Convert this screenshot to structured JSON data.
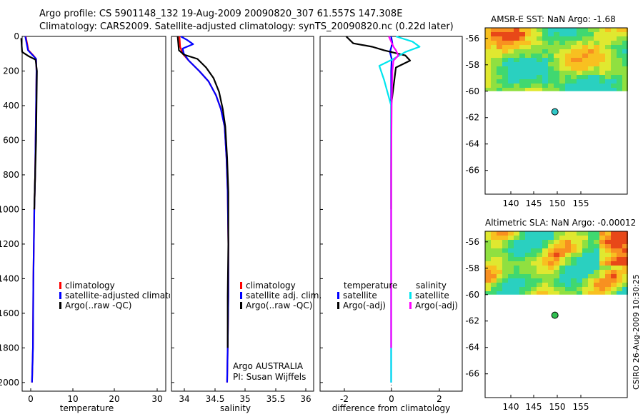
{
  "header": {
    "line1": "Argo profile: CS 5901148_132 19-Aug-2009 20090820_307 61.557S 147.308E",
    "line2": "Climatology: CARS2009. Satellite-adjusted climatology: synTS_20090820.nc (0.22d later)"
  },
  "timestamp": "CSIRO 26-Aug-2009 10:30:25",
  "colors": {
    "climatology": "#ff0000",
    "satellite": "#0000ff",
    "argo": "#000000",
    "sal_satellite": "#00e5ee",
    "sal_argo": "#ff00ff"
  },
  "chart_data": [
    {
      "type": "line",
      "name": "temperature-profile",
      "xlabel": "temperature",
      "ylabel": "",
      "xlim": [
        -1,
        31
      ],
      "ylim": [
        2050,
        0
      ],
      "xticks": [
        "0",
        "10",
        "20",
        "30"
      ],
      "yticks": [
        "0",
        "200",
        "400",
        "600",
        "800",
        "1000",
        "1200",
        "1400",
        "1600",
        "1800",
        "2000"
      ],
      "legend": [
        "climatology",
        "satellite-adjusted climatology",
        "Argo(..raw -QC)"
      ],
      "series": [
        {
          "name": "climatology",
          "x": [
            -0.2,
            0.4,
            1.5,
            2.1,
            2.2,
            2.1,
            2.0,
            1.9,
            1.7,
            1.5,
            1.4,
            1.2
          ],
          "y": [
            0,
            80,
            110,
            130,
            200,
            400,
            600,
            800,
            1000,
            1400,
            1800,
            2000
          ]
        },
        {
          "name": "satellite-adjusted climatology",
          "x": [
            -0.3,
            0.3,
            1.4,
            2.1,
            2.2,
            2.1,
            2.0,
            1.9,
            1.7,
            1.5,
            1.4,
            1.2
          ],
          "y": [
            0,
            80,
            110,
            130,
            200,
            400,
            600,
            800,
            1000,
            1400,
            1800,
            2000
          ]
        },
        {
          "name": "Argo(..raw -QC)",
          "x": [
            -1.2,
            -1.0,
            0.5,
            2.0,
            2.3,
            2.2,
            2.1,
            1.9,
            1.7
          ],
          "y": [
            10,
            90,
            115,
            135,
            200,
            400,
            600,
            800,
            1000
          ]
        }
      ]
    },
    {
      "type": "line",
      "name": "salinity-profile",
      "xlabel": "salinity",
      "ylabel": "",
      "xlim": [
        33.8,
        36.1
      ],
      "ylim": [
        2050,
        0
      ],
      "xticks": [
        "34",
        "34.5",
        "35",
        "35.5",
        "36"
      ],
      "yticks": [],
      "legend": [
        "climatology",
        "satellite adj. clim.",
        "Argo(..raw -QC)"
      ],
      "note": [
        "Argo AUSTRALIA",
        "PI: Susan Wijffels"
      ],
      "series": [
        {
          "name": "climatology",
          "x": [
            33.93,
            33.94,
            33.98,
            34.08,
            34.25,
            34.4,
            34.52,
            34.6,
            34.66,
            34.69,
            34.71,
            34.72,
            34.72,
            34.71,
            34.7
          ],
          "y": [
            0,
            60,
            100,
            140,
            200,
            260,
            340,
            420,
            520,
            700,
            900,
            1200,
            1500,
            1800,
            2000
          ]
        },
        {
          "name": "satellite adj. clim.",
          "x": [
            33.95,
            34.05,
            34.15,
            33.98,
            34.0,
            34.08,
            34.25,
            34.4,
            34.52,
            34.6,
            34.66,
            34.69,
            34.71,
            34.72,
            34.72,
            34.71,
            34.7
          ],
          "y": [
            0,
            20,
            45,
            70,
            100,
            140,
            200,
            260,
            340,
            420,
            520,
            700,
            900,
            1200,
            1500,
            1800,
            2000
          ]
        },
        {
          "name": "Argo(..raw -QC)",
          "x": [
            33.9,
            33.92,
            34.0,
            34.22,
            34.36,
            34.48,
            34.57,
            34.63,
            34.67,
            34.7,
            34.72,
            34.72,
            34.71,
            34.71
          ],
          "y": [
            0,
            80,
            105,
            130,
            180,
            240,
            320,
            420,
            520,
            700,
            900,
            1200,
            1500,
            1800
          ]
        }
      ]
    },
    {
      "type": "line",
      "name": "difference-profile",
      "xlabel": "difference from climatology",
      "ylabel": "",
      "xlim": [
        -3,
        3
      ],
      "ylim": [
        2050,
        0
      ],
      "xticks": [
        "-2",
        "0",
        "2"
      ],
      "yticks": [],
      "legend_titles": [
        "temperature",
        "salinity"
      ],
      "legend": [
        "satellite",
        "Argo(-adj)",
        "satellite",
        "Argo(-adj)"
      ],
      "series": [
        {
          "name": "temperature satellite",
          "x": [
            0.0,
            0.05,
            -0.05,
            0.02,
            0.0,
            0.0,
            0.0,
            0.0,
            0.0
          ],
          "y": [
            0,
            40,
            90,
            130,
            200,
            400,
            800,
            1400,
            2000
          ]
        },
        {
          "name": "temperature Argo(-adj)",
          "x": [
            -1.9,
            -1.6,
            -0.8,
            -0.3,
            0.6,
            0.8,
            0.2,
            0.0,
            0.0,
            0.0
          ],
          "y": [
            0,
            40,
            60,
            80,
            110,
            140,
            180,
            400,
            800,
            1000
          ]
        },
        {
          "name": "salinity satellite",
          "x": [
            0.2,
            0.9,
            1.2,
            0.6,
            0.1,
            -0.5,
            -0.3,
            0.0,
            0.0,
            0.0
          ],
          "y": [
            0,
            30,
            60,
            90,
            130,
            170,
            250,
            400,
            800,
            2000
          ]
        },
        {
          "name": "salinity Argo(-adj)",
          "x": [
            -0.1,
            0.1,
            0.2,
            0.3,
            0.1,
            0.05,
            0.02,
            0.0,
            0.0
          ],
          "y": [
            0,
            60,
            80,
            110,
            140,
            200,
            400,
            800,
            1800
          ]
        }
      ]
    },
    {
      "type": "heatmap",
      "name": "amsr-sst-map",
      "title": "AMSR-E SST: NaN Argo: -1.68",
      "xticks": [
        "140",
        "145",
        "150",
        "155"
      ],
      "yticks": [
        "-56",
        "-58",
        "-60",
        "-62",
        "-64",
        "-66"
      ],
      "xlim": [
        136.5,
        158.5
      ],
      "ylim": [
        -67.8,
        -55.2
      ],
      "coverage_lat_min": -60,
      "argo_point": [
        147.3,
        -61.56
      ]
    },
    {
      "type": "heatmap",
      "name": "altimetric-sla-map",
      "title": "Altimetric SLA: NaN Argo: -0.00012",
      "xticks": [
        "140",
        "145",
        "150",
        "155"
      ],
      "yticks": [
        "-56",
        "-58",
        "-60",
        "-62",
        "-64",
        "-66"
      ],
      "xlim": [
        136.5,
        158.5
      ],
      "ylim": [
        -67.8,
        -55.2
      ],
      "coverage_lat_min": -60,
      "argo_point": [
        147.3,
        -61.56
      ]
    }
  ]
}
